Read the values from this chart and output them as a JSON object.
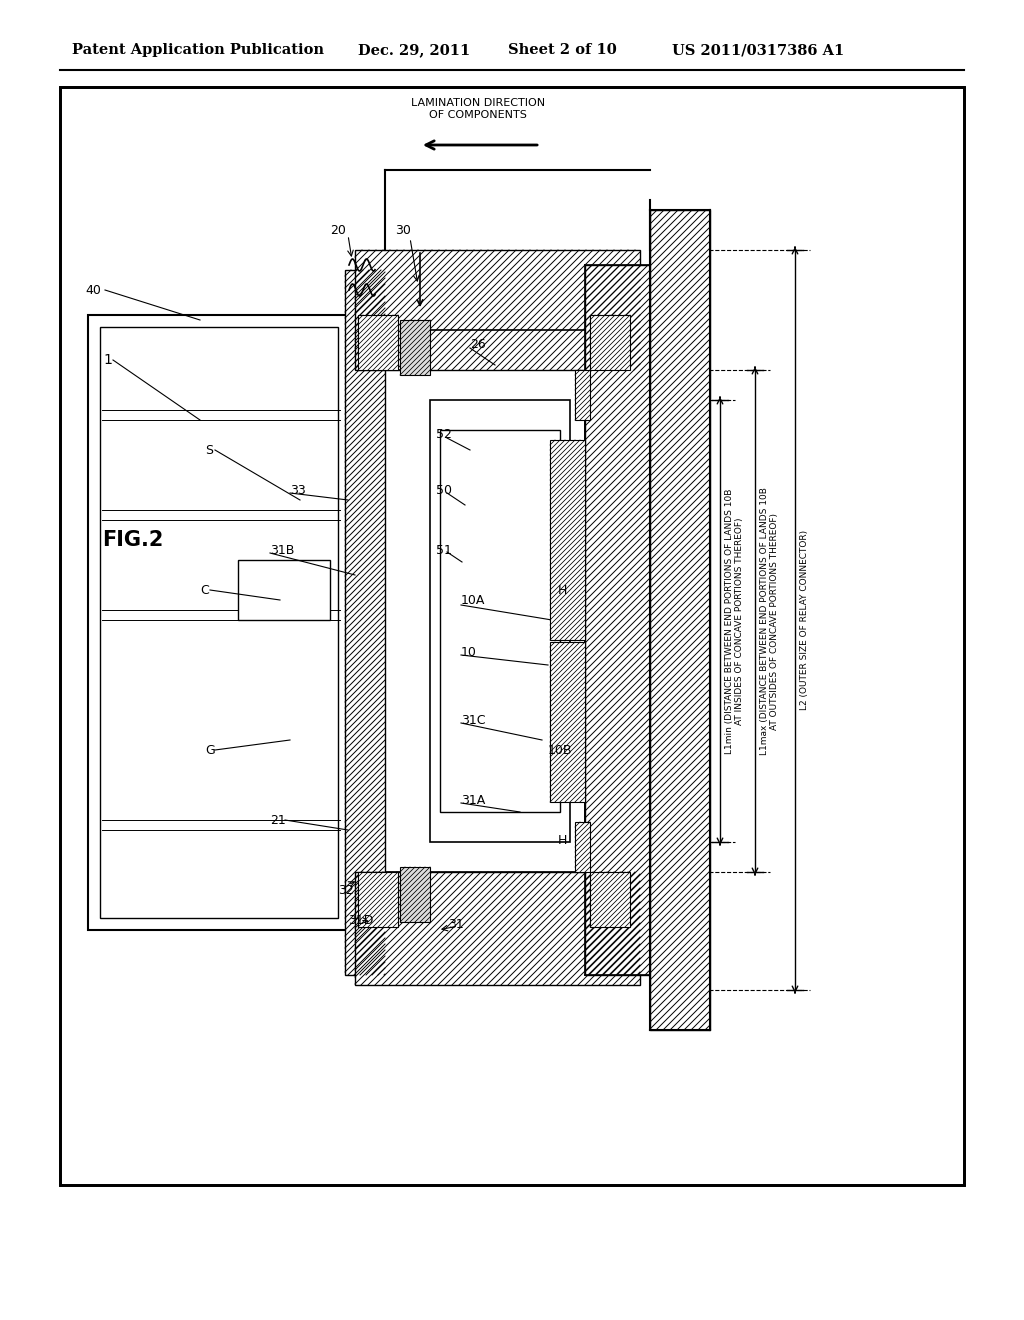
{
  "bg_color": "#ffffff",
  "header_text": "Patent Application Publication",
  "header_date": "Dec. 29, 2011",
  "header_sheet": "Sheet 2 of 10",
  "header_patent": "US 2011/0317386 A1",
  "annotations": {
    "lamination": "LAMINATION DIRECTION\nOF COMPONENTS",
    "L1min": "L1min (DISTANCE BETWEEN END PORTIONS OF LANDS 10B\nAT INSIDES OF CONCAVE PORTIONS THEREOF)",
    "L1max": "L1max (DISTANCE BETWEEN END PORTIONS OF LANDS 10B\nAT OUTSIDES OF CONCAVE PORTIONS THEREOF)",
    "L2": "L2 (OUTER SIZE OF RELAY CONNECTOR)"
  }
}
